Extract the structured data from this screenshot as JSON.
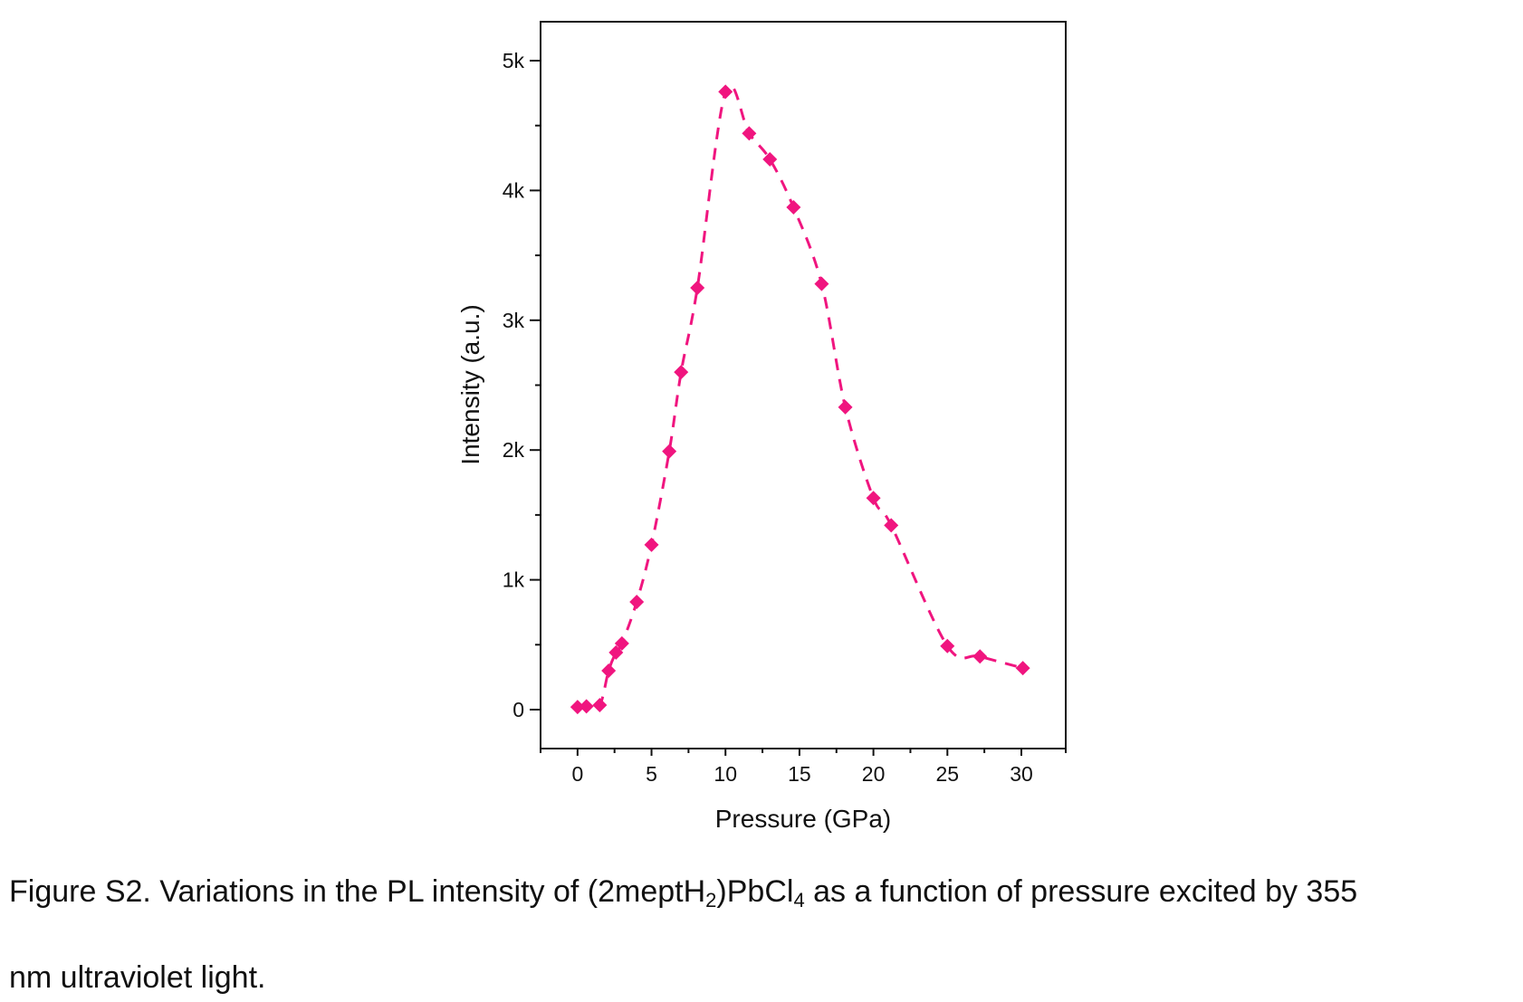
{
  "chart_data": {
    "type": "scatter",
    "xlabel": "Pressure (GPa)",
    "ylabel": "Intensity (a.u.)",
    "xlim": [
      -2.5,
      33
    ],
    "ylim": [
      -300,
      5300
    ],
    "x_ticks": [
      {
        "value": 0,
        "label": "0"
      },
      {
        "value": 5,
        "label": "5"
      },
      {
        "value": 10,
        "label": "10"
      },
      {
        "value": 15,
        "label": "15"
      },
      {
        "value": 20,
        "label": "20"
      },
      {
        "value": 25,
        "label": "25"
      },
      {
        "value": 30,
        "label": "30"
      }
    ],
    "y_ticks": [
      {
        "value": 0,
        "label": "0"
      },
      {
        "value": 1000,
        "label": "1k"
      },
      {
        "value": 2000,
        "label": "2k"
      },
      {
        "value": 3000,
        "label": "3k"
      },
      {
        "value": 4000,
        "label": "4k"
      },
      {
        "value": 5000,
        "label": "5k"
      }
    ],
    "marker_color": "#f0157f",
    "line_style": "dashed",
    "grid": false,
    "points": [
      {
        "x": 0.0,
        "y": 20
      },
      {
        "x": 0.6,
        "y": 25
      },
      {
        "x": 1.5,
        "y": 35
      },
      {
        "x": 2.1,
        "y": 300
      },
      {
        "x": 2.6,
        "y": 440
      },
      {
        "x": 3.0,
        "y": 510
      },
      {
        "x": 4.0,
        "y": 830
      },
      {
        "x": 5.0,
        "y": 1270
      },
      {
        "x": 6.2,
        "y": 1990
      },
      {
        "x": 7.0,
        "y": 2600
      },
      {
        "x": 8.1,
        "y": 3250
      },
      {
        "x": 10.0,
        "y": 4760
      },
      {
        "x": 11.6,
        "y": 4440
      },
      {
        "x": 13.0,
        "y": 4240
      },
      {
        "x": 14.6,
        "y": 3870
      },
      {
        "x": 16.5,
        "y": 3280
      },
      {
        "x": 18.1,
        "y": 2330
      },
      {
        "x": 20.0,
        "y": 1630
      },
      {
        "x": 21.2,
        "y": 1420
      },
      {
        "x": 25.0,
        "y": 490
      },
      {
        "x": 27.2,
        "y": 410
      },
      {
        "x": 30.1,
        "y": 320
      }
    ]
  },
  "caption": {
    "line1_prefix": "Figure S2. Variations in the PL intensity of (2meptH",
    "sub1": "2",
    "line1_mid": ")PbCl",
    "sub2": "4",
    "line1_suffix": " as a function of pressure excited by 355",
    "line2": "nm ultraviolet light."
  }
}
